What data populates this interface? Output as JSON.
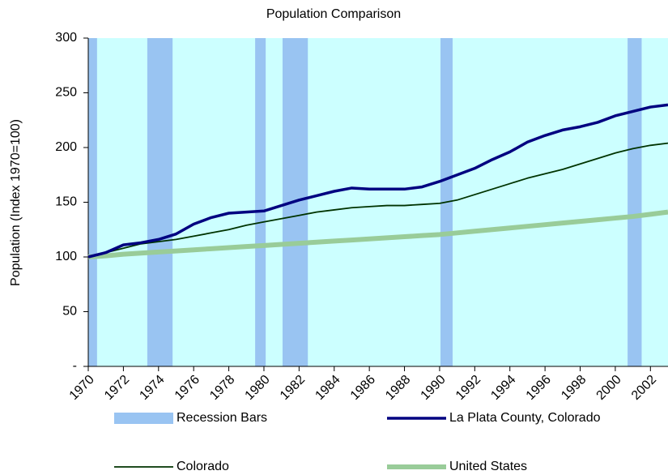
{
  "chart_data": {
    "type": "line",
    "title": "Population Comparison",
    "y_label": "Population (Index 1970=100)",
    "x": [
      1970,
      1971,
      1972,
      1973,
      1974,
      1975,
      1976,
      1977,
      1978,
      1979,
      1980,
      1981,
      1982,
      1983,
      1984,
      1985,
      1986,
      1987,
      1988,
      1989,
      1990,
      1991,
      1992,
      1993,
      1994,
      1995,
      1996,
      1997,
      1998,
      1999,
      2000,
      2001,
      2002,
      2003
    ],
    "xlim": [
      1970,
      2003
    ],
    "xticks": [
      1970,
      1972,
      1974,
      1976,
      1978,
      1980,
      1982,
      1984,
      1986,
      1988,
      1990,
      1992,
      1994,
      1996,
      1998,
      2000,
      2002
    ],
    "ylim": [
      0,
      300
    ],
    "yticks": [
      {
        "value": 0,
        "label": "-"
      },
      50,
      100,
      150,
      200,
      250,
      300
    ],
    "background": "#ccffff",
    "recessions": {
      "name": "Recession Bars",
      "color": "#99c4f2",
      "start": [
        1970.0,
        1973.36,
        1979.5,
        1981.06,
        1990.05,
        2000.7
      ],
      "end": [
        1970.5,
        1974.8,
        1980.1,
        1982.5,
        1990.74,
        2001.5
      ]
    },
    "series": [
      {
        "name": "La Plata County, Colorado",
        "color": "#000080",
        "width": 3.5,
        "values": [
          100,
          104,
          111,
          113,
          116,
          121,
          130,
          136,
          140,
          141,
          142,
          147,
          152,
          156,
          160,
          163,
          162,
          162,
          162,
          164,
          169,
          175,
          181,
          189,
          196,
          205,
          211,
          216,
          219,
          223,
          229,
          233,
          237,
          239
        ]
      },
      {
        "name": "Colorado",
        "color": "#003300",
        "width": 1.8,
        "values": [
          100,
          104,
          108,
          112,
          114,
          116,
          119,
          122,
          125,
          129,
          132,
          135,
          138,
          141,
          143,
          145,
          146,
          147,
          147,
          148,
          149,
          152,
          157,
          162,
          167,
          172,
          176,
          180,
          185,
          190,
          195,
          199,
          202,
          204
        ]
      },
      {
        "name": "United States",
        "color": "#99cc99",
        "width": 6,
        "values": [
          100,
          101,
          102.5,
          103.5,
          104.5,
          105.5,
          106.5,
          107.5,
          108.5,
          109.5,
          110.5,
          111.5,
          112.5,
          113.5,
          114.5,
          115.5,
          116.5,
          117.5,
          118.5,
          119.5,
          120.5,
          122,
          123.5,
          125,
          126.5,
          128,
          129.5,
          131,
          132.5,
          134,
          135.5,
          137,
          139,
          141
        ]
      }
    ]
  }
}
